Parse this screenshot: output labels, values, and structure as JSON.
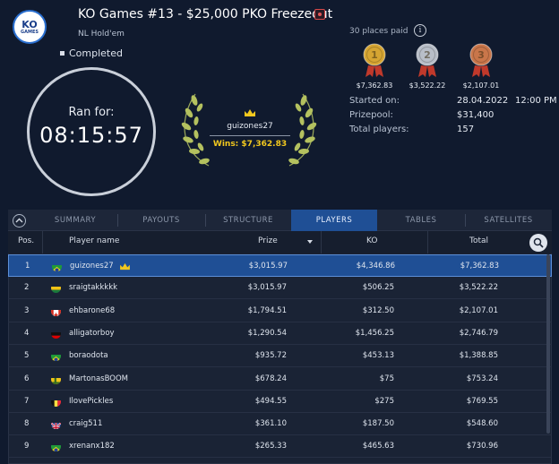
{
  "header": {
    "logo_text": "KO",
    "logo_sub": "GAMES",
    "title": "KO Games #13 - $25,000 PKO Freezeout",
    "subtitle": "NL Hold'em",
    "status": "Completed"
  },
  "ran_for": {
    "label": "Ran for:",
    "time": "08:15:57"
  },
  "winner": {
    "name": "guizones27",
    "wins": "Wins: $7,362.83"
  },
  "places": {
    "paid_text": "30 places paid",
    "medals": [
      {
        "place": "1",
        "prize": "$7,362.83",
        "color": "#d6a532"
      },
      {
        "place": "2",
        "prize": "$3,522.22",
        "color": "#b8bec8"
      },
      {
        "place": "3",
        "prize": "$2,107.01",
        "color": "#c9764a"
      }
    ]
  },
  "info": {
    "started_label": "Started on:",
    "started_date": "28.04.2022",
    "started_time": "12:00 PM",
    "prizepool_label": "Prizepool:",
    "prizepool_value": "$31,400",
    "players_label": "Total players:",
    "players_value": "157"
  },
  "tabs": [
    "SUMMARY",
    "PAYOUTS",
    "STRUCTURE",
    "PLAYERS",
    "TABLES",
    "SATELLITES"
  ],
  "active_tab": "PLAYERS",
  "columns": {
    "pos": "Pos.",
    "name": "Player name",
    "prize": "Prize",
    "ko": "KO",
    "total": "Total"
  },
  "rows": [
    {
      "pos": "1",
      "name": "guizones27",
      "flag": "brazil",
      "prize": "$3,015.97",
      "ko": "$4,346.86",
      "total": "$7,362.83"
    },
    {
      "pos": "2",
      "name": "sraigtakkkkk",
      "flag": "lithuania",
      "prize": "$3,015.97",
      "ko": "$506.25",
      "total": "$3,522.22"
    },
    {
      "pos": "3",
      "name": "ehbarone68",
      "flag": "canada",
      "prize": "$1,794.51",
      "ko": "$312.50",
      "total": "$2,107.01"
    },
    {
      "pos": "4",
      "name": "alligatorboy",
      "flag": "germany",
      "prize": "$1,290.54",
      "ko": "$1,456.25",
      "total": "$2,746.79"
    },
    {
      "pos": "5",
      "name": "boraodota",
      "flag": "brazil",
      "prize": "$935.72",
      "ko": "$453.13",
      "total": "$1,388.85"
    },
    {
      "pos": "6",
      "name": "MartonasBOOM",
      "flag": "sweden",
      "prize": "$678.24",
      "ko": "$75",
      "total": "$753.24"
    },
    {
      "pos": "7",
      "name": "IlovePickles",
      "flag": "belgium",
      "prize": "$494.55",
      "ko": "$275",
      "total": "$769.55"
    },
    {
      "pos": "8",
      "name": "craig511",
      "flag": "uk",
      "prize": "$361.10",
      "ko": "$187.50",
      "total": "$548.60"
    },
    {
      "pos": "9",
      "name": "xrenanx182",
      "flag": "brazil",
      "prize": "$265.33",
      "ko": "$465.63",
      "total": "$730.96"
    }
  ]
}
